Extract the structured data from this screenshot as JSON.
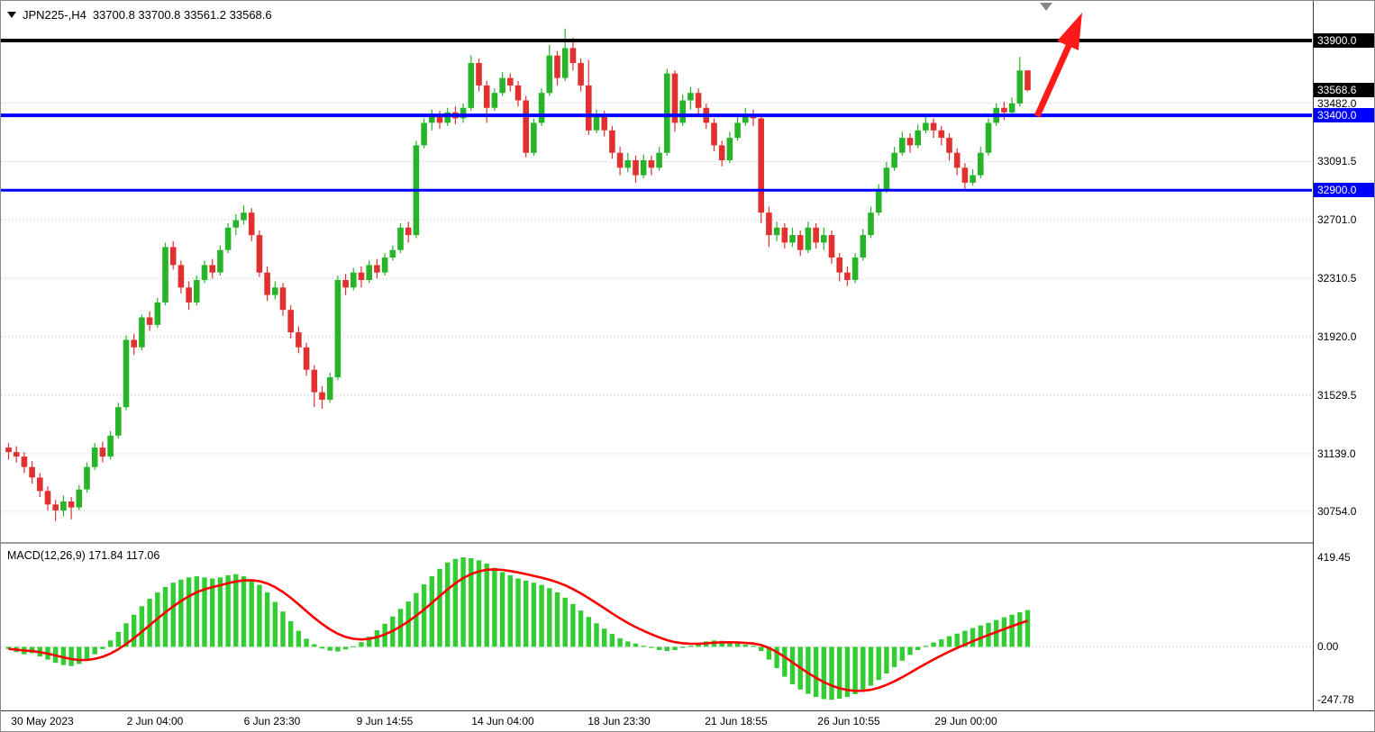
{
  "header": {
    "symbol": "JPN225-,H4",
    "ohlc": "33700.8 33700.8 33561.2 33568.6",
    "macd_label": "MACD(12,26,9) 171.84 117.06"
  },
  "colors": {
    "background": "#FFFFFF",
    "bull": "#28B428",
    "bear": "#E03030",
    "macd_hist": "#32CD32",
    "macd_signal": "#FF0000",
    "hline_blue": "#0000FF",
    "hline_black": "#000000",
    "arrow": "#FF1A1A",
    "grid_dots": "#BBBBBB",
    "shift_marker": "#888888",
    "badge_black_bg": "#000000",
    "badge_blue_bg": "#0000FF",
    "badge_text": "#FFFFFF",
    "axis_text": "#000000"
  },
  "chart_data": [
    {
      "type": "candlestick",
      "title": "JPN225-,H4",
      "timeframe": "H4",
      "current_ohlc": {
        "open": 33700.8,
        "high": 33700.8,
        "low": 33561.2,
        "close": 33568.6
      },
      "ylim": [
        30549,
        34165
      ],
      "ohlc": [
        [
          31180,
          31210,
          31100,
          31150
        ],
        [
          31150,
          31190,
          31080,
          31120
        ],
        [
          31120,
          31150,
          31010,
          31050
        ],
        [
          31050,
          31090,
          30940,
          30980
        ],
        [
          30980,
          31010,
          30850,
          30890
        ],
        [
          30890,
          30920,
          30760,
          30800
        ],
        [
          30800,
          30830,
          30690,
          30760
        ],
        [
          30760,
          30860,
          30720,
          30820
        ],
        [
          30820,
          30850,
          30700,
          30780
        ],
        [
          30780,
          30930,
          30760,
          30900
        ],
        [
          30900,
          31080,
          30880,
          31050
        ],
        [
          31050,
          31210,
          31030,
          31180
        ],
        [
          31180,
          31220,
          31080,
          31120
        ],
        [
          31120,
          31290,
          31100,
          31260
        ],
        [
          31260,
          31480,
          31240,
          31450
        ],
        [
          31450,
          31930,
          31430,
          31900
        ],
        [
          31900,
          31940,
          31800,
          31850
        ],
        [
          31850,
          32070,
          31830,
          32050
        ],
        [
          32050,
          32090,
          31960,
          32000
        ],
        [
          32000,
          32180,
          31980,
          32150
        ],
        [
          32150,
          32550,
          32130,
          32520
        ],
        [
          32520,
          32560,
          32370,
          32400
        ],
        [
          32400,
          32430,
          32210,
          32250
        ],
        [
          32250,
          32290,
          32100,
          32150
        ],
        [
          32150,
          32330,
          32130,
          32300
        ],
        [
          32300,
          32430,
          32280,
          32400
        ],
        [
          32400,
          32440,
          32310,
          32350
        ],
        [
          32350,
          32530,
          32330,
          32500
        ],
        [
          32500,
          32680,
          32480,
          32650
        ],
        [
          32650,
          32740,
          32600,
          32700
        ],
        [
          32700,
          32800,
          32670,
          32750
        ],
        [
          32750,
          32780,
          32560,
          32600
        ],
        [
          32600,
          32630,
          32320,
          32350
        ],
        [
          32350,
          32390,
          32160,
          32200
        ],
        [
          32200,
          32290,
          32170,
          32250
        ],
        [
          32250,
          32280,
          32060,
          32100
        ],
        [
          32100,
          32130,
          31910,
          31950
        ],
        [
          31950,
          31990,
          31810,
          31850
        ],
        [
          31850,
          31880,
          31660,
          31700
        ],
        [
          31700,
          31730,
          31450,
          31550
        ],
        [
          31550,
          31590,
          31440,
          31500
        ],
        [
          31500,
          31680,
          31480,
          31650
        ],
        [
          31650,
          32330,
          31630,
          32300
        ],
        [
          32300,
          32340,
          32200,
          32250
        ],
        [
          32250,
          32380,
          32230,
          32350
        ],
        [
          32350,
          32390,
          32250,
          32300
        ],
        [
          32300,
          32430,
          32280,
          32400
        ],
        [
          32400,
          32440,
          32310,
          32350
        ],
        [
          32350,
          32480,
          32330,
          32450
        ],
        [
          32450,
          32530,
          32430,
          32500
        ],
        [
          32500,
          32680,
          32480,
          32650
        ],
        [
          32650,
          32690,
          32550,
          32600
        ],
        [
          32600,
          33230,
          32580,
          33200
        ],
        [
          33200,
          33380,
          33180,
          33350
        ],
        [
          33350,
          33440,
          33300,
          33400
        ],
        [
          33400,
          33430,
          33310,
          33350
        ],
        [
          33350,
          33450,
          33330,
          33420
        ],
        [
          33420,
          33460,
          33340,
          33380
        ],
        [
          33380,
          33480,
          33350,
          33450
        ],
        [
          33450,
          33800,
          33430,
          33750
        ],
        [
          33750,
          33780,
          33560,
          33600
        ],
        [
          33600,
          33630,
          33350,
          33450
        ],
        [
          33450,
          33580,
          33430,
          33550
        ],
        [
          33550,
          33690,
          33530,
          33650
        ],
        [
          33650,
          33680,
          33560,
          33600
        ],
        [
          33600,
          33630,
          33460,
          33500
        ],
        [
          33500,
          33530,
          33120,
          33150
        ],
        [
          33150,
          33380,
          33130,
          33350
        ],
        [
          33350,
          33580,
          33330,
          33550
        ],
        [
          33550,
          33870,
          33530,
          33800
        ],
        [
          33800,
          33830,
          33600,
          33650
        ],
        [
          33650,
          33980,
          33630,
          33850
        ],
        [
          33850,
          33920,
          33700,
          33750
        ],
        [
          33750,
          33780,
          33560,
          33600
        ],
        [
          33600,
          33770,
          33270,
          33300
        ],
        [
          33300,
          33440,
          33280,
          33400
        ],
        [
          33400,
          33430,
          33260,
          33300
        ],
        [
          33300,
          33330,
          33110,
          33150
        ],
        [
          33150,
          33190,
          33000,
          33050
        ],
        [
          33050,
          33150,
          33020,
          33100
        ],
        [
          33100,
          33130,
          32950,
          33000
        ],
        [
          33000,
          33140,
          32980,
          33100
        ],
        [
          33100,
          33130,
          33000,
          33050
        ],
        [
          33050,
          33190,
          33030,
          33150
        ],
        [
          33150,
          33710,
          33130,
          33680
        ],
        [
          33680,
          33700,
          33290,
          33350
        ],
        [
          33350,
          33540,
          33330,
          33500
        ],
        [
          33500,
          33590,
          33440,
          33550
        ],
        [
          33550,
          33580,
          33410,
          33450
        ],
        [
          33450,
          33480,
          33310,
          33350
        ],
        [
          33350,
          33380,
          33160,
          33200
        ],
        [
          33200,
          33230,
          33060,
          33100
        ],
        [
          33100,
          33290,
          33080,
          33250
        ],
        [
          33250,
          33390,
          33230,
          33350
        ],
        [
          33350,
          33450,
          33330,
          33400
        ],
        [
          33400,
          33440,
          33330,
          33380
        ],
        [
          33380,
          33410,
          32680,
          32750
        ],
        [
          32750,
          32790,
          32520,
          32600
        ],
        [
          32600,
          32690,
          32560,
          32650
        ],
        [
          32650,
          32680,
          32510,
          32550
        ],
        [
          32550,
          32650,
          32520,
          32600
        ],
        [
          32600,
          32630,
          32460,
          32500
        ],
        [
          32500,
          32690,
          32480,
          32650
        ],
        [
          32650,
          32680,
          32510,
          32550
        ],
        [
          32550,
          32650,
          32500,
          32600
        ],
        [
          32600,
          32630,
          32410,
          32450
        ],
        [
          32450,
          32480,
          32290,
          32350
        ],
        [
          32350,
          32390,
          32260,
          32300
        ],
        [
          32300,
          32480,
          32280,
          32450
        ],
        [
          32450,
          32640,
          32430,
          32600
        ],
        [
          32600,
          32790,
          32580,
          32750
        ],
        [
          32750,
          32940,
          32730,
          32900
        ],
        [
          32900,
          33090,
          32880,
          33050
        ],
        [
          33050,
          33190,
          33030,
          33150
        ],
        [
          33150,
          33290,
          33130,
          33250
        ],
        [
          33250,
          33280,
          33150,
          33200
        ],
        [
          33200,
          33340,
          33180,
          33300
        ],
        [
          33300,
          33400,
          33280,
          33350
        ],
        [
          33350,
          33380,
          33250,
          33300
        ],
        [
          33300,
          33330,
          33200,
          33250
        ],
        [
          33250,
          33280,
          33100,
          33150
        ],
        [
          33150,
          33180,
          33000,
          33050
        ],
        [
          33050,
          33080,
          32910,
          32950
        ],
        [
          32950,
          33040,
          32930,
          33000
        ],
        [
          33000,
          33190,
          32980,
          33150
        ],
        [
          33150,
          33380,
          33130,
          33350
        ],
        [
          33350,
          33480,
          33330,
          33450
        ],
        [
          33450,
          33490,
          33370,
          33420
        ],
        [
          33420,
          33520,
          33400,
          33480
        ],
        [
          33480,
          33790,
          33460,
          33700
        ],
        [
          33700.8,
          33700.8,
          33561.2,
          33568.6
        ]
      ],
      "hlines": [
        {
          "value": 33900.0,
          "color": "#000000",
          "width": 4
        },
        {
          "value": 33400.0,
          "color": "#0000FF",
          "width": 4
        },
        {
          "value": 32900.0,
          "color": "#0000FF",
          "width": 3
        }
      ],
      "price_labels": [
        {
          "text": "33900.0",
          "value": 33900.0,
          "style": "black-badge"
        },
        {
          "text": "33568.6",
          "value": 33568.6,
          "style": "black-badge"
        },
        {
          "text": "33482.0",
          "value": 33482.0,
          "style": "plain",
          "grid": true
        },
        {
          "text": "33400.0",
          "value": 33400.0,
          "style": "blue-badge"
        },
        {
          "text": "33091.5",
          "value": 33091.5,
          "style": "plain",
          "grid": true
        },
        {
          "text": "32900.0",
          "value": 32900.0,
          "style": "blue-badge"
        },
        {
          "text": "32701.0",
          "value": 32701.0,
          "style": "plain",
          "grid": true
        },
        {
          "text": "32310.5",
          "value": 32310.5,
          "style": "plain",
          "grid": true
        },
        {
          "text": "31920.0",
          "value": 31920.0,
          "style": "plain",
          "grid": true
        },
        {
          "text": "31529.5",
          "value": 31529.5,
          "style": "plain",
          "grid": true
        },
        {
          "text": "31139.0",
          "value": 31139.0,
          "style": "plain",
          "grid": true
        },
        {
          "text": "30754.0",
          "value": 30754.0,
          "style": "plain",
          "grid": true
        }
      ],
      "time_labels": [
        {
          "text": "30 May 2023",
          "i": 4.3
        },
        {
          "text": "2 Jun 04:00",
          "i": 18.7
        },
        {
          "text": "6 Jun 23:30",
          "i": 33.6
        },
        {
          "text": "9 Jun 14:55",
          "i": 48.0
        },
        {
          "text": "14 Jun 04:00",
          "i": 63.0
        },
        {
          "text": "18 Jun 23:30",
          "i": 77.9
        },
        {
          "text": "21 Jun 18:55",
          "i": 92.8
        },
        {
          "text": "26 Jun 10:55",
          "i": 107.2
        },
        {
          "text": "29 Jun 00:00",
          "i": 122.1
        }
      ]
    },
    {
      "type": "bar",
      "title": "MACD(12,26,9)",
      "macd_value": 171.84,
      "signal_value": 117.06,
      "signal_ema_period": 9,
      "ylim": [
        -293.6,
        482.3
      ],
      "values": [
        -10,
        -25,
        -35,
        -30,
        -45,
        -60,
        -75,
        -85,
        -90,
        -80,
        -60,
        -35,
        -10,
        30,
        70,
        110,
        150,
        190,
        225,
        255,
        280,
        300,
        315,
        325,
        330,
        325,
        320,
        325,
        335,
        340,
        330,
        315,
        290,
        255,
        210,
        165,
        120,
        75,
        38,
        12,
        -8,
        -18,
        -22,
        -12,
        2,
        22,
        48,
        78,
        108,
        142,
        178,
        212,
        252,
        292,
        330,
        365,
        395,
        412,
        419,
        415,
        405,
        390,
        370,
        350,
        335,
        320,
        310,
        300,
        290,
        275,
        255,
        230,
        200,
        170,
        140,
        110,
        85,
        60,
        40,
        25,
        15,
        5,
        -5,
        -15,
        -20,
        -15,
        -5,
        5,
        15,
        25,
        30,
        28,
        22,
        15,
        10,
        5,
        -20,
        -60,
        -100,
        -140,
        -175,
        -200,
        -220,
        -235,
        -245,
        -248,
        -243,
        -235,
        -222,
        -205,
        -182,
        -155,
        -125,
        -95,
        -65,
        -38,
        -15,
        5,
        20,
        35,
        50,
        62,
        75,
        88,
        100,
        112,
        125,
        138,
        150,
        162,
        171.84
      ],
      "axis_labels": [
        {
          "text": "419.45",
          "value": 419.45
        },
        {
          "text": "0.00",
          "value": 0
        },
        {
          "text": "-247.78",
          "value": -247.78
        }
      ]
    }
  ]
}
